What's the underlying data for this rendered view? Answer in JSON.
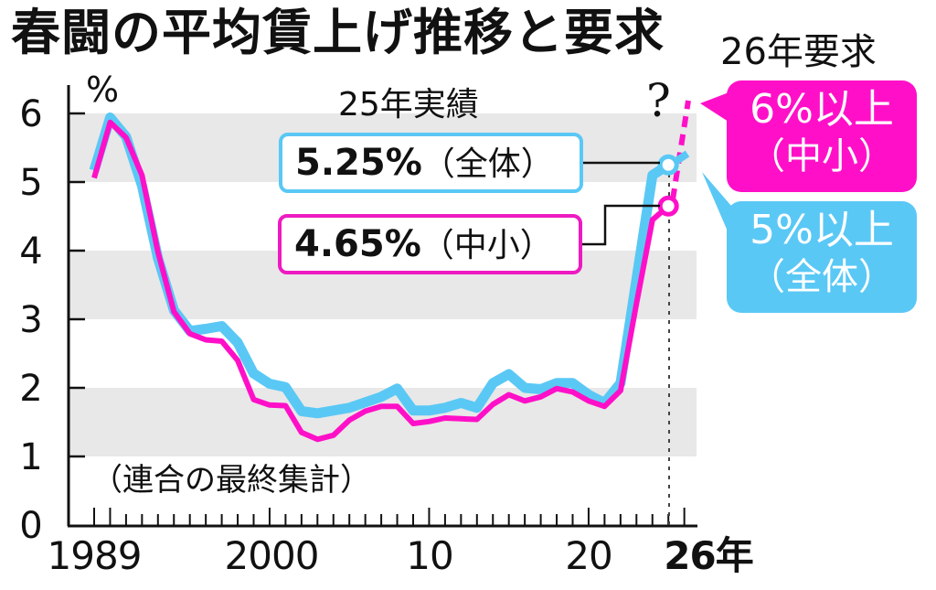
{
  "header": {
    "title": "春闘の平均賃上げ推移と要求",
    "request_title": "26年要求"
  },
  "axis": {
    "y_unit": "%",
    "y_ticks": [
      "0",
      "1",
      "2",
      "3",
      "4",
      "5",
      "6"
    ],
    "x_ticks": [
      "1989",
      "2000",
      "10",
      "20",
      "26年"
    ]
  },
  "source_note": "（連合の最終集計）",
  "annotations": {
    "results_title": "25年実績",
    "overall_value": "5.25%",
    "overall_category": "（全体）",
    "sme_value": "4.65%",
    "sme_category": "（中小）",
    "question_mark": "?"
  },
  "bubbles": {
    "sme": {
      "value": "6%以上",
      "category": "（中小）",
      "color": "#ff10c8"
    },
    "overall": {
      "value": "5%以上",
      "category": "（全体）",
      "color": "#5ac8f5"
    }
  },
  "colors": {
    "overall_line": "#5ac8f5",
    "sme_line": "#ff10c8",
    "band": "#e8e8e8"
  },
  "chart_data": {
    "type": "line",
    "title": "春闘の平均賃上げ推移と要求",
    "xlabel": "年",
    "ylabel": "%",
    "ylim": [
      0,
      6
    ],
    "xlim": [
      1989,
      2026
    ],
    "grid": "alternating horizontal bands",
    "legend_position": "annotation boxes near 2025",
    "x": [
      1989,
      1990,
      1991,
      1992,
      1993,
      1994,
      1995,
      1996,
      1997,
      1998,
      1999,
      2000,
      2001,
      2002,
      2003,
      2004,
      2005,
      2006,
      2007,
      2008,
      2009,
      2010,
      2011,
      2012,
      2013,
      2014,
      2015,
      2016,
      2017,
      2018,
      2019,
      2020,
      2021,
      2022,
      2023,
      2024,
      2025
    ],
    "series": [
      {
        "name": "全体",
        "values": [
          5.17,
          5.94,
          5.66,
          4.95,
          3.89,
          3.13,
          2.83,
          2.86,
          2.9,
          2.66,
          2.21,
          2.06,
          2.01,
          1.66,
          1.63,
          1.67,
          1.71,
          1.79,
          1.87,
          1.99,
          1.67,
          1.67,
          1.71,
          1.78,
          1.71,
          2.07,
          2.2,
          2.0,
          1.98,
          2.07,
          2.07,
          1.9,
          1.78,
          2.07,
          3.58,
          5.1,
          5.25
        ]
      },
      {
        "name": "中小",
        "values": [
          5.06,
          5.87,
          5.65,
          5.1,
          3.98,
          3.11,
          2.79,
          2.7,
          2.68,
          2.4,
          1.83,
          1.75,
          1.74,
          1.35,
          1.25,
          1.31,
          1.53,
          1.66,
          1.73,
          1.73,
          1.48,
          1.51,
          1.56,
          1.55,
          1.54,
          1.76,
          1.9,
          1.81,
          1.87,
          1.99,
          1.94,
          1.81,
          1.73,
          1.96,
          3.23,
          4.45,
          4.65
        ]
      }
    ],
    "requests_2026": {
      "全体": "5%以上",
      "中小": "6%以上"
    },
    "annotations": [
      "25年実績 5.25%（全体）",
      "25年実績 4.65%（中小）",
      "26年要求 6%以上（中小）",
      "26年要求 5%以上（全体）",
      "（連合の最終集計）"
    ]
  }
}
